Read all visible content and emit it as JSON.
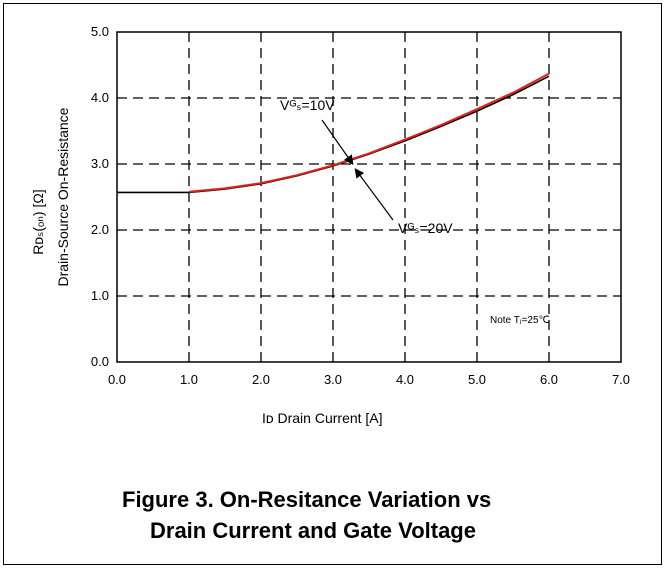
{
  "chart_data": {
    "type": "line",
    "xlabel": "Iᴅ Drain Current [A]",
    "ylabel_symbol": "Rᴅₛ(ₒₙ) [Ω]",
    "ylabel": "Drain-Source On-Resistance",
    "xlim": [
      0,
      7
    ],
    "ylim": [
      0,
      5
    ],
    "xticks": [
      "0.0",
      "1.0",
      "2.0",
      "3.0",
      "4.0",
      "5.0",
      "6.0",
      "7.0"
    ],
    "yticks": [
      "0.0",
      "1.0",
      "2.0",
      "3.0",
      "4.0",
      "5.0"
    ],
    "grid": true,
    "series": [
      {
        "name": "Vᴳₛ=10V",
        "color": "#000000",
        "x": [
          0.0,
          1.0,
          1.5,
          2.0,
          2.5,
          3.0,
          3.5,
          4.0,
          4.5,
          5.0,
          5.5,
          6.0
        ],
        "y": [
          2.57,
          2.57,
          2.62,
          2.7,
          2.82,
          2.97,
          3.15,
          3.35,
          3.57,
          3.8,
          4.05,
          4.33
        ]
      },
      {
        "name": "Vᴳₛ=20V",
        "color": "#e0201a",
        "x": [
          1.0,
          1.5,
          2.0,
          2.5,
          3.0,
          3.5,
          4.0,
          4.5,
          5.0,
          5.5,
          6.0
        ],
        "y": [
          2.58,
          2.63,
          2.71,
          2.83,
          2.98,
          3.16,
          3.37,
          3.59,
          3.83,
          4.08,
          4.37
        ]
      }
    ],
    "annotations": {
      "vgs10": "Vᴳₛ=10V",
      "vgs20": "Vᴳₛ=20V",
      "note": "Note Tⱼ=25℃"
    }
  },
  "figure": {
    "caption_line1": "Figure 3. On-Resitance Variation vs",
    "caption_line2": "Drain Current and Gate Voltage"
  }
}
